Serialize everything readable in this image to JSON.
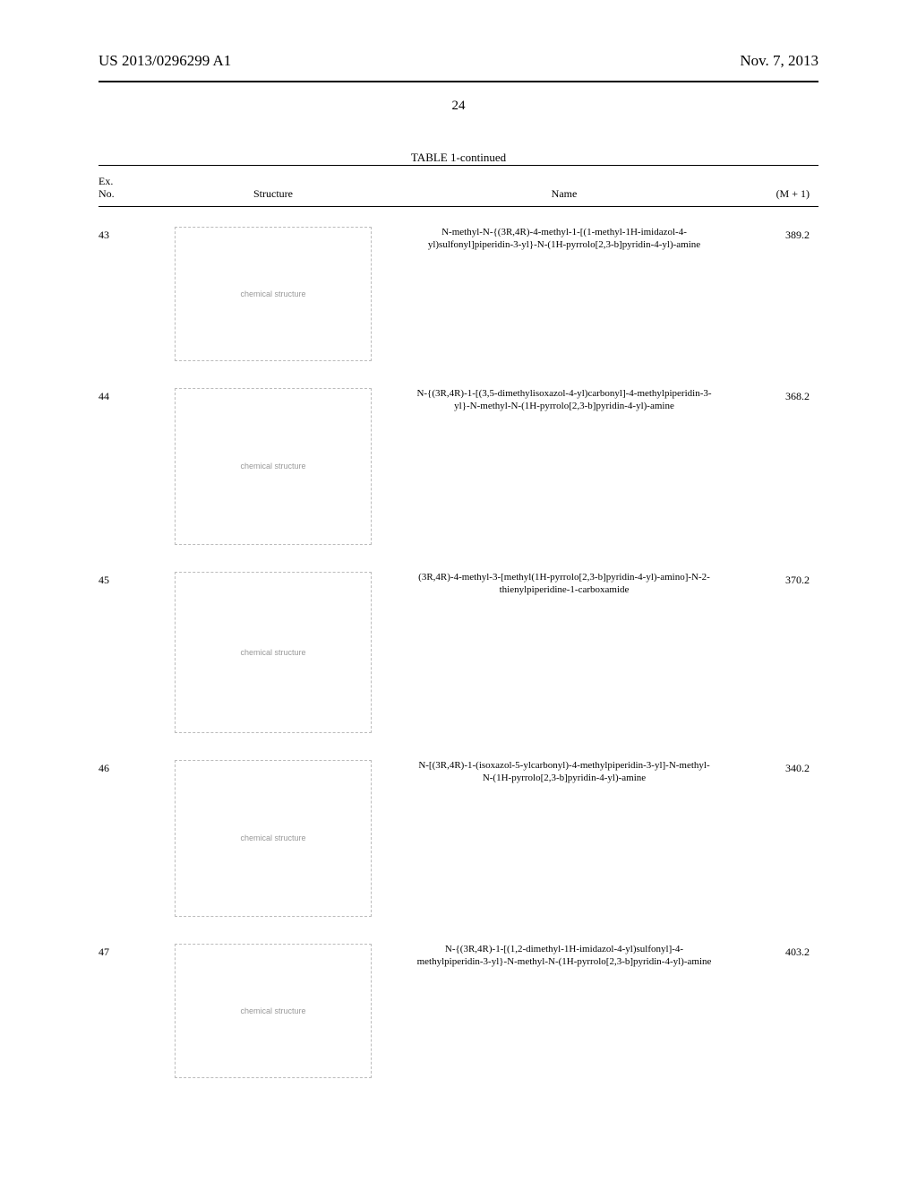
{
  "header": {
    "publication_id": "US 2013/0296299 A1",
    "publication_date": "Nov. 7, 2013",
    "page_number": "24"
  },
  "table": {
    "caption": "TABLE 1-continued",
    "columns": {
      "exno": "Ex.\nNo.",
      "structure": "Structure",
      "name": "Name",
      "m1": "(M + 1)"
    },
    "rows": [
      {
        "exno": "43",
        "structure_desc": "chemical structure",
        "name": "N-methyl-N-{(3R,4R)-4-methyl-1-[(1-methyl-1H-imidazol-4-yl)sulfonyl]piperidin-3-yl}-N-(1H-pyrrolo[2,3-b]pyridin-4-yl)-amine",
        "m1": "389.2",
        "height_class": "h-170"
      },
      {
        "exno": "44",
        "structure_desc": "chemical structure",
        "name": "N-{(3R,4R)-1-[(3,5-dimethylisoxazol-4-yl)carbonyl]-4-methylpiperidin-3-yl}-N-methyl-N-(1H-pyrrolo[2,3-b]pyridin-4-yl)-amine",
        "m1": "368.2",
        "height_class": "h-190"
      },
      {
        "exno": "45",
        "structure_desc": "chemical structure",
        "name": "(3R,4R)-4-methyl-3-[methyl(1H-pyrrolo[2,3-b]pyridin-4-yl)-amino]-N-2-thienylpiperidine-1-carboxamide",
        "m1": "370.2",
        "height_class": "h-200"
      },
      {
        "exno": "46",
        "structure_desc": "chemical structure",
        "name": "N-[(3R,4R)-1-(isoxazol-5-ylcarbonyl)-4-methylpiperidin-3-yl]-N-methyl-N-(1H-pyrrolo[2,3-b]pyridin-4-yl)-amine",
        "m1": "340.2",
        "height_class": "h-190"
      },
      {
        "exno": "47",
        "structure_desc": "chemical structure",
        "name": "N-{(3R,4R)-1-[(1,2-dimethyl-1H-imidazol-4-yl)sulfonyl]-4-methylpiperidin-3-yl}-N-methyl-N-(1H-pyrrolo[2,3-b]pyridin-4-yl)-amine",
        "m1": "403.2",
        "height_class": "h-170"
      }
    ]
  }
}
